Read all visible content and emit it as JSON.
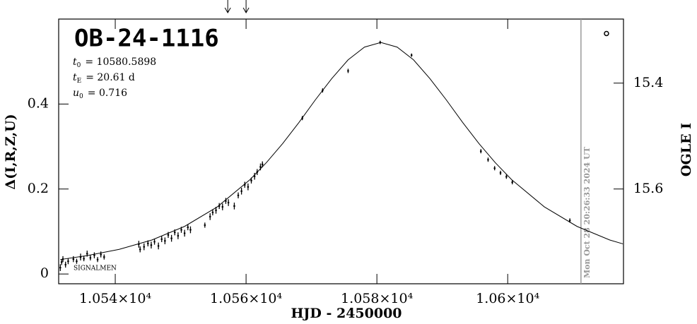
{
  "chart_data": {
    "type": "scatter",
    "title": "OB-24-1116",
    "params": [
      {
        "symbol": "t",
        "sub": "0",
        "text": "= 10580.5898"
      },
      {
        "symbol": "t",
        "sub": "E",
        "text": "= 20.61 d"
      },
      {
        "symbol": "u",
        "sub": "0",
        "text": "= 0.716"
      }
    ],
    "signal_label": "SIGNALMEN",
    "date_text": "Mon Oct 28 20:26:33 2024 UT",
    "date_line_x": 10611.2,
    "arrows_x": [
      10557.2,
      10560.0
    ],
    "x_label": "HJD - 2450000",
    "y_label": "Δ(I,R,Z,U)",
    "y2_label": "OGLE I",
    "xlim": [
      10531.35,
      10617.7
    ],
    "xticks": [
      {
        "value": 10540,
        "label": "1.054×10⁴"
      },
      {
        "value": 10560,
        "label": "1.056×10⁴"
      },
      {
        "value": 10580,
        "label": "1.058×10⁴"
      },
      {
        "value": 10600,
        "label": "1.06×10⁴"
      }
    ],
    "ylim": [
      -0.023,
      0.6
    ],
    "yticks": [
      0,
      0.2,
      0.4
    ],
    "y2lim": [
      15.779,
      15.279
    ],
    "y2ticks": [
      15.4,
      15.6
    ],
    "color": "#000000",
    "x": [
      10531.6,
      10531.8,
      10532.0,
      10532.4,
      10532.8,
      10533.6,
      10534.1,
      10534.7,
      10535.2,
      10535.7,
      10536.2,
      10536.8,
      10537.3,
      10537.8,
      10538.3,
      10543.6,
      10543.8,
      10544.4,
      10545.0,
      10545.5,
      10546.0,
      10546.6,
      10547.1,
      10547.6,
      10548.1,
      10548.6,
      10549.1,
      10549.6,
      10550.1,
      10550.6,
      10551.1,
      10551.5,
      10553.7,
      10554.5,
      10554.9,
      10555.4,
      10555.9,
      10556.4,
      10556.9,
      10557.3,
      10558.2,
      10558.8,
      10559.3,
      10559.8,
      10560.3,
      10560.8,
      10561.3,
      10561.7,
      10562.2,
      10562.5,
      10568.6,
      10571.7,
      10575.6,
      10580.5,
      10585.3,
      10595.9,
      10597.0,
      10598.0,
      10598.9,
      10599.8,
      10600.7,
      10609.5
    ],
    "values": [
      0.015,
      0.028,
      0.035,
      0.022,
      0.03,
      0.035,
      0.03,
      0.04,
      0.036,
      0.048,
      0.038,
      0.044,
      0.034,
      0.046,
      0.04,
      0.07,
      0.058,
      0.064,
      0.072,
      0.068,
      0.076,
      0.066,
      0.082,
      0.078,
      0.092,
      0.084,
      0.098,
      0.09,
      0.104,
      0.096,
      0.11,
      0.104,
      0.115,
      0.135,
      0.145,
      0.15,
      0.16,
      0.158,
      0.172,
      0.168,
      0.16,
      0.185,
      0.195,
      0.21,
      0.205,
      0.22,
      0.23,
      0.24,
      0.252,
      0.258,
      0.367,
      0.432,
      0.478,
      0.545,
      0.515,
      0.289,
      0.269,
      0.249,
      0.238,
      0.229,
      0.216,
      0.126
    ],
    "errors": [
      0.008,
      0.007,
      0.007,
      0.007,
      0.007,
      0.007,
      0.006,
      0.008,
      0.006,
      0.007,
      0.006,
      0.007,
      0.006,
      0.007,
      0.006,
      0.008,
      0.007,
      0.008,
      0.007,
      0.008,
      0.007,
      0.008,
      0.007,
      0.008,
      0.007,
      0.008,
      0.007,
      0.008,
      0.007,
      0.008,
      0.007,
      0.008,
      0.006,
      0.008,
      0.007,
      0.008,
      0.007,
      0.008,
      0.007,
      0.008,
      0.008,
      0.007,
      0.008,
      0.007,
      0.008,
      0.007,
      0.008,
      0.007,
      0.008,
      0.007,
      0.005,
      0.005,
      0.005,
      0.004,
      0.004,
      0.005,
      0.005,
      0.005,
      0.005,
      0.005,
      0.005,
      0.005
    ],
    "marker": {
      "x": 10615.1,
      "y": 0.566
    },
    "model": {
      "color": "#000000",
      "x": [
        10531.6,
        10535.6,
        10540.6,
        10545.6,
        10550.6,
        10555.6,
        10560.6,
        10563.1,
        10565.6,
        10568.1,
        10570.6,
        10573.1,
        10575.6,
        10578.1,
        10580.6,
        10583.1,
        10585.6,
        10588.1,
        10590.6,
        10593.1,
        10595.6,
        10598.1,
        10600.6,
        10605.6,
        10610.6,
        10615.6,
        10617.6
      ],
      "values": [
        0.034,
        0.043,
        0.058,
        0.08,
        0.112,
        0.158,
        0.222,
        0.262,
        0.307,
        0.357,
        0.41,
        0.46,
        0.504,
        0.534,
        0.545,
        0.534,
        0.504,
        0.46,
        0.41,
        0.357,
        0.307,
        0.262,
        0.222,
        0.158,
        0.112,
        0.08,
        0.071
      ]
    }
  }
}
